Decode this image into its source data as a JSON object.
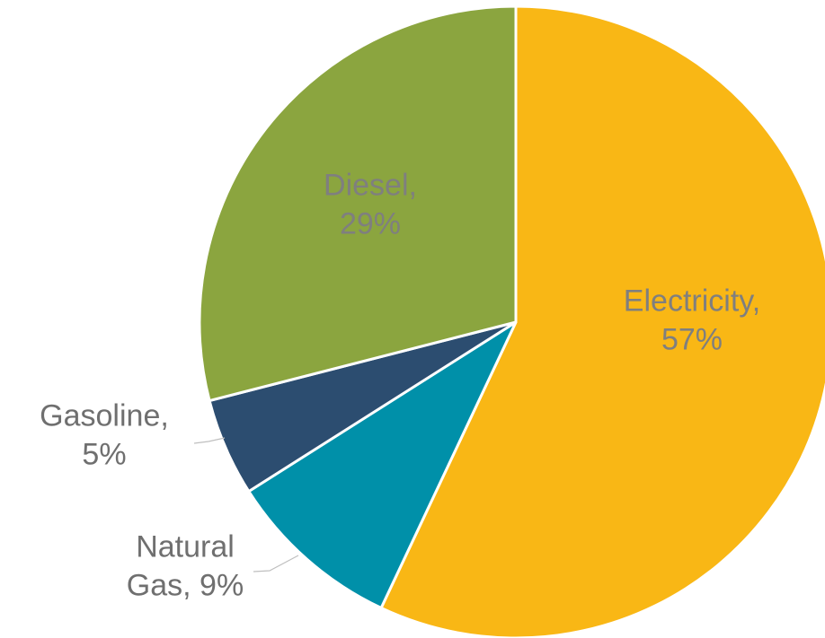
{
  "chart_data": {
    "type": "pie",
    "title": "",
    "start_angle_deg": 0,
    "direction": "clockwise",
    "slices": [
      {
        "key": "electricity",
        "label": "Electricity",
        "value": 57,
        "label_text": [
          "Electricity,",
          "57%"
        ],
        "color": "#F9B715",
        "label_color": "#7F7F7F"
      },
      {
        "key": "natural-gas",
        "label": "Natural Gas",
        "value": 9,
        "label_text": [
          "Natural",
          "Gas, 9%"
        ],
        "color": "#0090A9",
        "label_color": "#6F6F6F"
      },
      {
        "key": "gasoline",
        "label": "Gasoline",
        "value": 5,
        "label_text": [
          "Gasoline,",
          "5%"
        ],
        "color": "#2C4D70",
        "label_color": "#6F6F6F"
      },
      {
        "key": "diesel",
        "label": "Diesel",
        "value": 29,
        "label_text": [
          "Diesel,",
          "29%"
        ],
        "color": "#8BA53F",
        "label_color": "#7F7F7F"
      }
    ]
  }
}
